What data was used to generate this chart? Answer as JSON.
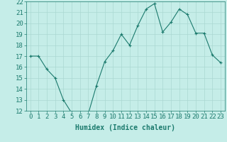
{
  "x": [
    0,
    1,
    2,
    3,
    4,
    5,
    6,
    7,
    8,
    9,
    10,
    11,
    12,
    13,
    14,
    15,
    16,
    17,
    18,
    19,
    20,
    21,
    22,
    23
  ],
  "y": [
    17.0,
    17.0,
    15.8,
    15.0,
    13.0,
    11.8,
    11.8,
    11.7,
    14.3,
    16.5,
    17.5,
    19.0,
    18.0,
    19.8,
    21.3,
    21.8,
    19.2,
    20.1,
    21.3,
    20.8,
    19.1,
    19.1,
    17.1,
    16.4
  ],
  "xlabel": "Humidex (Indice chaleur)",
  "ylim": [
    12,
    22
  ],
  "xlim": [
    -0.5,
    23.5
  ],
  "yticks": [
    12,
    13,
    14,
    15,
    16,
    17,
    18,
    19,
    20,
    21,
    22
  ],
  "xticks": [
    0,
    1,
    2,
    3,
    4,
    5,
    6,
    7,
    8,
    9,
    10,
    11,
    12,
    13,
    14,
    15,
    16,
    17,
    18,
    19,
    20,
    21,
    22,
    23
  ],
  "xtick_labels": [
    "0",
    "1",
    "2",
    "3",
    "4",
    "5",
    "6",
    "7",
    "8",
    "9",
    "10",
    "11",
    "12",
    "13",
    "14",
    "15",
    "16",
    "17",
    "18",
    "19",
    "20",
    "21",
    "22",
    "23"
  ],
  "line_color": "#1b7a6d",
  "marker": "+",
  "bg_color": "#c5ede8",
  "grid_color": "#aad8d2",
  "axis_color": "#1b7a6d",
  "tick_label_color": "#1b7a6d",
  "xlabel_color": "#1b7a6d",
  "font_size": 6.5
}
